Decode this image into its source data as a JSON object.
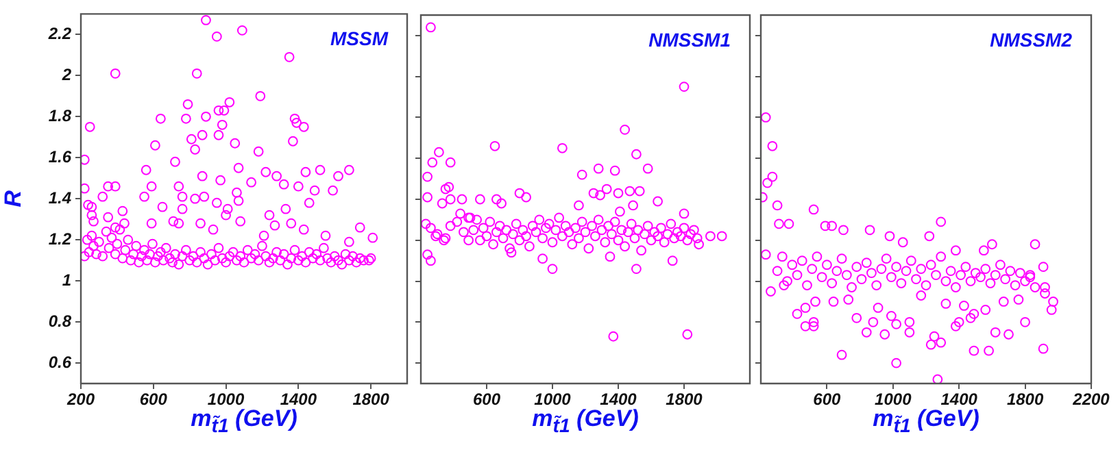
{
  "chart_data": [
    {
      "type": "scatter",
      "title": "MSSM",
      "xlabel": "m$_{t̃1}$ (GeV)",
      "ylabel": "R",
      "xlim": [
        200,
        2000
      ],
      "xticks": [
        200,
        600,
        1000,
        1400,
        1800
      ],
      "ylim": [
        0.5,
        2.3
      ],
      "yticks": [
        0.6,
        0.8,
        1,
        1.2,
        1.4,
        1.6,
        1.8,
        2,
        2.2
      ],
      "marker": "circle",
      "grid": false,
      "legend": false,
      "series": [
        {
          "color": "#ff00ff",
          "x": [
            890,
            950,
            1090,
            390,
            840,
            1350,
            1190,
            1020,
            790,
            960,
            990,
            890,
            780,
            640,
            1380,
            1390,
            1430,
            980,
            250,
            810,
            870,
            960,
            1050,
            610,
            1370,
            1180,
            830,
            220,
            720,
            560,
            1070,
            1220,
            870,
            1280,
            1440,
            1520,
            1620,
            1680,
            1140,
            970,
            350,
            390,
            590,
            740,
            1400,
            1490,
            1590,
            1320,
            220,
            550,
            760,
            830,
            880,
            1060,
            320,
            240,
            260,
            260,
            430,
            650,
            760,
            950,
            1010,
            1070,
            1330,
            1460,
            1240,
            350,
            270,
            390,
            440,
            590,
            710,
            740,
            860,
            930,
            1000,
            1080,
            1210,
            1270,
            1360,
            1430,
            1550,
            1740,
            1810,
            1680,
            220,
            235,
            245,
            260,
            270,
            285,
            300,
            320,
            340,
            355,
            370,
            390,
            400,
            415,
            430,
            445,
            460,
            475,
            490,
            505,
            520,
            535,
            550,
            565,
            580,
            595,
            610,
            625,
            640,
            655,
            670,
            690,
            705,
            720,
            740,
            760,
            780,
            800,
            820,
            840,
            860,
            880,
            900,
            920,
            940,
            960,
            980,
            1000,
            1020,
            1040,
            1060,
            1080,
            1100,
            1120,
            1140,
            1160,
            1180,
            1200,
            1220,
            1240,
            1260,
            1280,
            1300,
            1320,
            1340,
            1360,
            1380,
            1400,
            1420,
            1440,
            1460,
            1480,
            1500,
            1520,
            1540,
            1560,
            1580,
            1600,
            1620,
            1640,
            1660,
            1680,
            1700,
            1720,
            1740,
            1760,
            1790,
            1800
          ],
          "values": [
            2.27,
            2.19,
            2.22,
            2.01,
            2.01,
            2.09,
            1.9,
            1.87,
            1.86,
            1.83,
            1.83,
            1.8,
            1.79,
            1.79,
            1.79,
            1.77,
            1.75,
            1.76,
            1.75,
            1.69,
            1.71,
            1.71,
            1.67,
            1.66,
            1.68,
            1.63,
            1.64,
            1.59,
            1.58,
            1.54,
            1.55,
            1.53,
            1.51,
            1.51,
            1.53,
            1.54,
            1.51,
            1.54,
            1.48,
            1.49,
            1.46,
            1.46,
            1.46,
            1.46,
            1.46,
            1.44,
            1.44,
            1.47,
            1.45,
            1.41,
            1.41,
            1.4,
            1.41,
            1.43,
            1.41,
            1.37,
            1.36,
            1.32,
            1.34,
            1.36,
            1.35,
            1.38,
            1.35,
            1.39,
            1.35,
            1.38,
            1.32,
            1.31,
            1.29,
            1.26,
            1.28,
            1.28,
            1.29,
            1.28,
            1.28,
            1.25,
            1.32,
            1.29,
            1.22,
            1.27,
            1.28,
            1.25,
            1.22,
            1.26,
            1.21,
            1.19,
            1.12,
            1.2,
            1.14,
            1.22,
            1.17,
            1.13,
            1.19,
            1.12,
            1.24,
            1.16,
            1.21,
            1.13,
            1.18,
            1.25,
            1.11,
            1.15,
            1.2,
            1.1,
            1.13,
            1.17,
            1.09,
            1.12,
            1.15,
            1.1,
            1.13,
            1.18,
            1.09,
            1.12,
            1.14,
            1.1,
            1.16,
            1.11,
            1.09,
            1.13,
            1.08,
            1.12,
            1.15,
            1.1,
            1.12,
            1.09,
            1.14,
            1.11,
            1.08,
            1.13,
            1.1,
            1.16,
            1.11,
            1.09,
            1.12,
            1.14,
            1.1,
            1.12,
            1.09,
            1.15,
            1.11,
            1.13,
            1.1,
            1.17,
            1.12,
            1.09,
            1.11,
            1.14,
            1.1,
            1.13,
            1.08,
            1.11,
            1.15,
            1.1,
            1.12,
            1.09,
            1.14,
            1.11,
            1.13,
            1.1,
            1.16,
            1.11,
            1.09,
            1.12,
            1.1,
            1.08,
            1.13,
            1.1,
            1.12,
            1.09,
            1.11,
            1.1,
            1.1,
            1.11
          ]
        }
      ]
    },
    {
      "type": "scatter",
      "title": "NMSSM1",
      "xlabel": "m$_{t̃1}$ (GeV)",
      "xlim": [
        200,
        2200
      ],
      "xticks": [
        600,
        1000,
        1400,
        1800
      ],
      "ylim": [
        0.5,
        2.3
      ],
      "yticks": [
        0.6,
        0.8,
        1,
        1.2,
        1.4,
        1.6,
        1.8,
        2,
        2.2
      ],
      "tick_labels": "x",
      "marker": "circle",
      "grid": false,
      "legend": false,
      "series": [
        {
          "color": "#ff00ff",
          "x": [
            260,
            1800,
            1440,
            650,
            1060,
            1510,
            310,
            270,
            380,
            240,
            1180,
            1280,
            1380,
            1580,
            370,
            350,
            240,
            330,
            380,
            450,
            560,
            660,
            690,
            800,
            840,
            1250,
            1290,
            1330,
            1400,
            1470,
            1530,
            1640,
            1490,
            1160,
            1410,
            1800,
            230,
            290,
            240,
            260,
            350,
            440,
            490,
            490,
            1000,
            1350,
            1510,
            1730,
            1370,
            1820,
            940,
            750,
            1960,
            2030,
            1890,
            260,
            300,
            340,
            380,
            420,
            460,
            500,
            520,
            540,
            560,
            580,
            600,
            620,
            640,
            660,
            680,
            700,
            720,
            740,
            760,
            780,
            800,
            820,
            840,
            860,
            880,
            900,
            920,
            940,
            960,
            980,
            1000,
            1020,
            1040,
            1060,
            1080,
            1100,
            1120,
            1140,
            1160,
            1180,
            1200,
            1220,
            1240,
            1260,
            1280,
            1300,
            1320,
            1340,
            1360,
            1380,
            1400,
            1420,
            1440,
            1460,
            1480,
            1500,
            1520,
            1540,
            1560,
            1580,
            1600,
            1620,
            1640,
            1660,
            1680,
            1700,
            1720,
            1740,
            1760,
            1780,
            1800,
            1820,
            1840,
            1860,
            1880
          ],
          "values": [
            2.24,
            1.95,
            1.74,
            1.66,
            1.65,
            1.62,
            1.63,
            1.58,
            1.58,
            1.51,
            1.52,
            1.55,
            1.54,
            1.55,
            1.46,
            1.45,
            1.41,
            1.38,
            1.4,
            1.4,
            1.4,
            1.4,
            1.38,
            1.43,
            1.41,
            1.43,
            1.42,
            1.45,
            1.43,
            1.44,
            1.44,
            1.39,
            1.37,
            1.37,
            1.34,
            1.33,
            1.28,
            1.22,
            1.13,
            1.1,
            1.21,
            1.33,
            1.31,
            1.2,
            1.06,
            1.12,
            1.06,
            1.1,
            0.73,
            0.74,
            1.11,
            1.14,
            1.22,
            1.22,
            1.18,
            1.26,
            1.23,
            1.2,
            1.27,
            1.29,
            1.24,
            1.31,
            1.25,
            1.3,
            1.2,
            1.26,
            1.22,
            1.29,
            1.18,
            1.24,
            1.27,
            1.21,
            1.25,
            1.16,
            1.23,
            1.28,
            1.2,
            1.25,
            1.22,
            1.17,
            1.27,
            1.24,
            1.3,
            1.21,
            1.26,
            1.28,
            1.19,
            1.25,
            1.31,
            1.22,
            1.27,
            1.24,
            1.18,
            1.26,
            1.21,
            1.29,
            1.24,
            1.16,
            1.27,
            1.22,
            1.3,
            1.25,
            1.19,
            1.27,
            1.23,
            1.29,
            1.2,
            1.25,
            1.17,
            1.24,
            1.28,
            1.21,
            1.25,
            1.15,
            1.23,
            1.27,
            1.2,
            1.24,
            1.22,
            1.26,
            1.19,
            1.23,
            1.28,
            1.21,
            1.24,
            1.22,
            1.26,
            1.2,
            1.23,
            1.25,
            1.21
          ]
        }
      ]
    },
    {
      "type": "scatter",
      "title": "NMSSM2",
      "xlabel": "m$_{t̃1}$ (GeV)",
      "xlim": [
        200,
        2200
      ],
      "xticks": [
        600,
        1000,
        1400,
        1800,
        2200
      ],
      "ylim": [
        0.5,
        2.3
      ],
      "yticks": [
        0.6,
        0.8,
        1,
        1.2,
        1.4,
        1.6,
        1.8,
        2,
        2.2
      ],
      "tick_labels": "x",
      "marker": "circle",
      "grid": false,
      "legend": false,
      "series": [
        {
          "color": "#ff00ff",
          "x": [
            230,
            270,
            240,
            270,
            210,
            300,
            310,
            370,
            520,
            590,
            630,
            700,
            860,
            980,
            1060,
            1220,
            1290,
            1860,
            230,
            260,
            340,
            420,
            470,
            470,
            520,
            520,
            530,
            640,
            690,
            730,
            780,
            840,
            880,
            910,
            950,
            990,
            1020,
            1020,
            1100,
            1100,
            1170,
            1230,
            1250,
            1270,
            1290,
            1320,
            1380,
            1400,
            1430,
            1470,
            1490,
            1490,
            1560,
            1580,
            1620,
            1670,
            1700,
            1760,
            1800,
            1910,
            1920,
            1960,
            1970,
            1910,
            1830,
            1920,
            1380,
            1550,
            1600,
            300,
            330,
            360,
            390,
            420,
            450,
            480,
            510,
            540,
            570,
            600,
            630,
            660,
            690,
            720,
            750,
            780,
            810,
            840,
            870,
            900,
            930,
            960,
            990,
            1020,
            1050,
            1080,
            1110,
            1140,
            1170,
            1200,
            1230,
            1260,
            1290,
            1320,
            1350,
            1380,
            1410,
            1440,
            1470,
            1500,
            1530,
            1560,
            1590,
            1620,
            1650,
            1680,
            1710,
            1740,
            1770,
            1800,
            1830,
            1860
          ],
          "values": [
            1.8,
            1.66,
            1.48,
            1.51,
            1.41,
            1.37,
            1.28,
            1.28,
            1.35,
            1.27,
            1.27,
            1.25,
            1.25,
            1.22,
            1.19,
            1.22,
            1.29,
            1.18,
            1.13,
            0.95,
            0.98,
            0.84,
            0.87,
            0.78,
            0.8,
            0.78,
            0.9,
            0.9,
            0.64,
            0.91,
            0.82,
            0.75,
            0.8,
            0.87,
            0.74,
            0.83,
            0.79,
            0.6,
            0.75,
            0.8,
            0.93,
            0.69,
            0.73,
            0.52,
            0.7,
            0.89,
            0.78,
            0.8,
            0.88,
            0.82,
            0.84,
            0.66,
            0.86,
            0.66,
            0.75,
            0.9,
            0.74,
            0.91,
            0.8,
            0.67,
            0.94,
            0.86,
            0.9,
            1.07,
            1.03,
            0.97,
            1.15,
            1.15,
            1.18,
            1.05,
            1.12,
            1,
            1.08,
            1.03,
            1.1,
            0.98,
            1.06,
            1.12,
            1.02,
            1.08,
            0.99,
            1.05,
            1.11,
            1.03,
            0.97,
            1.07,
            1.01,
            1.09,
            1.04,
            0.98,
            1.06,
            1.11,
            1.02,
            1.07,
            0.99,
            1.05,
            1.1,
            1.01,
            1.06,
            0.98,
            1.08,
            1.03,
            1.12,
            1,
            1.05,
            0.97,
            1.03,
            1.07,
            1,
            1.04,
            1.02,
            1.06,
            0.99,
            1.03,
            1.08,
            1.01,
            1.05,
            0.98,
            1.04,
            1,
            1.02,
            0.97
          ]
        }
      ]
    }
  ]
}
